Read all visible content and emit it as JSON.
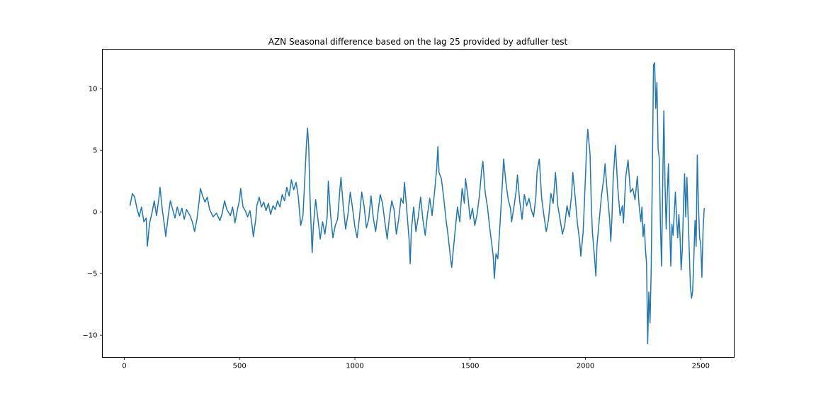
{
  "chart_data": {
    "type": "line",
    "title": "AZN Seasonal difference based on the lag 25 provided by adfuller test",
    "xlabel": "",
    "ylabel": "",
    "xlim": [
      -95,
      2645
    ],
    "ylim": [
      -11.8,
      13.2
    ],
    "xticks": [
      0,
      500,
      1000,
      1500,
      2000,
      2500
    ],
    "yticks": [
      -10,
      -5,
      0,
      5,
      10
    ],
    "grid": false,
    "line_color": "#1f77b4",
    "series": [
      {
        "points": [
          [
            25,
            0.5
          ],
          [
            35,
            1.5
          ],
          [
            45,
            1.2
          ],
          [
            55,
            0.3
          ],
          [
            65,
            -0.4
          ],
          [
            75,
            0.4
          ],
          [
            85,
            -0.8
          ],
          [
            95,
            -0.5
          ],
          [
            100,
            -2.8
          ],
          [
            110,
            -0.9
          ],
          [
            120,
            -0.1
          ],
          [
            130,
            0.9
          ],
          [
            140,
            -0.3
          ],
          [
            150,
            1.1
          ],
          [
            155,
            2.0
          ],
          [
            165,
            0.2
          ],
          [
            175,
            -1.2
          ],
          [
            180,
            -2.0
          ],
          [
            190,
            -0.4
          ],
          [
            200,
            0.9
          ],
          [
            210,
            0.2
          ],
          [
            220,
            -0.5
          ],
          [
            230,
            0.4
          ],
          [
            240,
            -0.3
          ],
          [
            250,
            0.3
          ],
          [
            260,
            -0.6
          ],
          [
            270,
            0.2
          ],
          [
            285,
            -0.3
          ],
          [
            295,
            -0.8
          ],
          [
            305,
            -1.6
          ],
          [
            315,
            -0.6
          ],
          [
            325,
            0.9
          ],
          [
            330,
            1.9
          ],
          [
            340,
            1.3
          ],
          [
            350,
            0.8
          ],
          [
            360,
            1.2
          ],
          [
            370,
            0.2
          ],
          [
            385,
            -0.4
          ],
          [
            400,
            -0.1
          ],
          [
            415,
            -0.7
          ],
          [
            425,
            -0.1
          ],
          [
            435,
            0.9
          ],
          [
            445,
            0.2
          ],
          [
            460,
            -0.3
          ],
          [
            470,
            0.4
          ],
          [
            480,
            -0.9
          ],
          [
            490,
            0.1
          ],
          [
            500,
            1.0
          ],
          [
            505,
            1.9
          ],
          [
            515,
            0.4
          ],
          [
            525,
            0.1
          ],
          [
            535,
            -0.4
          ],
          [
            545,
            0.1
          ],
          [
            555,
            -1.2
          ],
          [
            560,
            -2.0
          ],
          [
            570,
            -0.6
          ],
          [
            575,
            0.5
          ],
          [
            585,
            1.2
          ],
          [
            595,
            0.4
          ],
          [
            605,
            0.8
          ],
          [
            615,
            0.1
          ],
          [
            625,
            0.7
          ],
          [
            635,
            -0.2
          ],
          [
            645,
            0.5
          ],
          [
            655,
            0.2
          ],
          [
            665,
            0.9
          ],
          [
            675,
            0.4
          ],
          [
            685,
            1.4
          ],
          [
            695,
            0.9
          ],
          [
            705,
            2.0
          ],
          [
            715,
            1.3
          ],
          [
            725,
            2.6
          ],
          [
            735,
            1.8
          ],
          [
            745,
            2.4
          ],
          [
            755,
            1.2
          ],
          [
            765,
            -1.1
          ],
          [
            775,
            -0.3
          ],
          [
            785,
            3.5
          ],
          [
            790,
            5.5
          ],
          [
            795,
            6.8
          ],
          [
            800,
            5.2
          ],
          [
            805,
            1.5
          ],
          [
            810,
            -1.0
          ],
          [
            815,
            -3.3
          ],
          [
            820,
            -1.2
          ],
          [
            830,
            1.0
          ],
          [
            840,
            -0.6
          ],
          [
            850,
            -2.2
          ],
          [
            860,
            -0.8
          ],
          [
            870,
            -1.8
          ],
          [
            880,
            -0.4
          ],
          [
            885,
            2.5
          ],
          [
            895,
            -0.3
          ],
          [
            905,
            -2.1
          ],
          [
            915,
            -1.1
          ],
          [
            925,
            -0.6
          ],
          [
            935,
            1.8
          ],
          [
            940,
            2.8
          ],
          [
            950,
            0.4
          ],
          [
            960,
            -1.4
          ],
          [
            970,
            -0.2
          ],
          [
            980,
            1.6
          ],
          [
            990,
            0.3
          ],
          [
            1000,
            -1.2
          ],
          [
            1010,
            -2.1
          ],
          [
            1020,
            -0.4
          ],
          [
            1030,
            1.6
          ],
          [
            1040,
            0.5
          ],
          [
            1050,
            -1.3
          ],
          [
            1060,
            -0.6
          ],
          [
            1070,
            1.3
          ],
          [
            1080,
            -0.5
          ],
          [
            1090,
            -1.6
          ],
          [
            1100,
            -0.1
          ],
          [
            1110,
            1.4
          ],
          [
            1120,
            0.7
          ],
          [
            1130,
            -0.8
          ],
          [
            1140,
            -2.2
          ],
          [
            1150,
            -0.4
          ],
          [
            1160,
            0.9
          ],
          [
            1170,
            0.2
          ],
          [
            1180,
            -1.8
          ],
          [
            1190,
            -0.6
          ],
          [
            1200,
            1.1
          ],
          [
            1210,
            0.7
          ],
          [
            1215,
            2.4
          ],
          [
            1225,
            0.2
          ],
          [
            1235,
            -2.2
          ],
          [
            1240,
            -4.2
          ],
          [
            1245,
            -1.5
          ],
          [
            1255,
            0.4
          ],
          [
            1265,
            -1.6
          ],
          [
            1275,
            -0.4
          ],
          [
            1285,
            1.2
          ],
          [
            1295,
            -0.6
          ],
          [
            1305,
            -1.9
          ],
          [
            1315,
            -0.2
          ],
          [
            1325,
            1.1
          ],
          [
            1335,
            -0.3
          ],
          [
            1345,
            1.5
          ],
          [
            1355,
            3.5
          ],
          [
            1360,
            5.3
          ],
          [
            1365,
            3.2
          ],
          [
            1375,
            2.7
          ],
          [
            1385,
            1.2
          ],
          [
            1395,
            -0.6
          ],
          [
            1405,
            -2.0
          ],
          [
            1415,
            -3.8
          ],
          [
            1420,
            -4.5
          ],
          [
            1425,
            -3.5
          ],
          [
            1435,
            -1.5
          ],
          [
            1445,
            0.4
          ],
          [
            1455,
            -0.8
          ],
          [
            1465,
            1.9
          ],
          [
            1475,
            0.7
          ],
          [
            1480,
            2.7
          ],
          [
            1490,
            1.3
          ],
          [
            1500,
            -0.6
          ],
          [
            1510,
            0.3
          ],
          [
            1520,
            -1.1
          ],
          [
            1530,
            -0.2
          ],
          [
            1540,
            1.3
          ],
          [
            1550,
            3.4
          ],
          [
            1555,
            4.1
          ],
          [
            1565,
            1.6
          ],
          [
            1575,
            0.4
          ],
          [
            1585,
            -1.3
          ],
          [
            1595,
            -2.8
          ],
          [
            1600,
            -3.6
          ],
          [
            1605,
            -5.4
          ],
          [
            1612,
            -3.4
          ],
          [
            1620,
            -3.8
          ],
          [
            1630,
            -0.8
          ],
          [
            1640,
            2.4
          ],
          [
            1645,
            4.3
          ],
          [
            1655,
            2.4
          ],
          [
            1665,
            1.0
          ],
          [
            1675,
            0.3
          ],
          [
            1680,
            -0.8
          ],
          [
            1690,
            0.4
          ],
          [
            1700,
            1.8
          ],
          [
            1705,
            3.0
          ],
          [
            1715,
            0.9
          ],
          [
            1725,
            -0.6
          ],
          [
            1735,
            1.4
          ],
          [
            1745,
            0.5
          ],
          [
            1755,
            1.1
          ],
          [
            1765,
            0.2
          ],
          [
            1775,
            -0.4
          ],
          [
            1785,
            1.2
          ],
          [
            1790,
            3.3
          ],
          [
            1800,
            4.3
          ],
          [
            1810,
            1.1
          ],
          [
            1820,
            -0.3
          ],
          [
            1830,
            -1.6
          ],
          [
            1840,
            -0.6
          ],
          [
            1850,
            1.5
          ],
          [
            1860,
            0.7
          ],
          [
            1870,
            3.2
          ],
          [
            1880,
            0.5
          ],
          [
            1890,
            -0.6
          ],
          [
            1900,
            -1.8
          ],
          [
            1910,
            -1.1
          ],
          [
            1920,
            0.5
          ],
          [
            1930,
            -0.4
          ],
          [
            1940,
            1.4
          ],
          [
            1945,
            3.2
          ],
          [
            1955,
            1.3
          ],
          [
            1965,
            -0.9
          ],
          [
            1975,
            -2.4
          ],
          [
            1980,
            -3.6
          ],
          [
            1990,
            -1.6
          ],
          [
            2000,
            2.8
          ],
          [
            2005,
            5.2
          ],
          [
            2010,
            6.7
          ],
          [
            2020,
            4.7
          ],
          [
            2025,
            0.8
          ],
          [
            2030,
            -1.6
          ],
          [
            2040,
            -3.8
          ],
          [
            2045,
            -5.2
          ],
          [
            2050,
            -2.7
          ],
          [
            2060,
            -0.6
          ],
          [
            2070,
            1.4
          ],
          [
            2080,
            2.8
          ],
          [
            2085,
            3.9
          ],
          [
            2095,
            1.5
          ],
          [
            2105,
            -0.6
          ],
          [
            2110,
            -2.4
          ],
          [
            2115,
            -0.4
          ],
          [
            2120,
            2.6
          ],
          [
            2130,
            5.4
          ],
          [
            2140,
            2.0
          ],
          [
            2150,
            -0.3
          ],
          [
            2160,
            0.5
          ],
          [
            2165,
            -0.9
          ],
          [
            2175,
            2.9
          ],
          [
            2185,
            4.2
          ],
          [
            2195,
            1.6
          ],
          [
            2205,
            1.9
          ],
          [
            2215,
            1.0
          ],
          [
            2225,
            2.9
          ],
          [
            2232,
            0.7
          ],
          [
            2240,
            -0.8
          ],
          [
            2245,
            0.4
          ],
          [
            2250,
            -2.0
          ],
          [
            2255,
            -1.0
          ],
          [
            2260,
            -3.0
          ],
          [
            2265,
            -4.2
          ],
          [
            2270,
            -10.7
          ],
          [
            2275,
            -6.5
          ],
          [
            2280,
            -9.0
          ],
          [
            2285,
            -4.8
          ],
          [
            2290,
            2.8
          ],
          [
            2295,
            11.9
          ],
          [
            2300,
            12.1
          ],
          [
            2305,
            8.4
          ],
          [
            2310,
            10.5
          ],
          [
            2315,
            5.1
          ],
          [
            2320,
            4.4
          ],
          [
            2325,
            -0.9
          ],
          [
            2330,
            -4.4
          ],
          [
            2335,
            2.4
          ],
          [
            2340,
            8.2
          ],
          [
            2345,
            2.4
          ],
          [
            2350,
            -1.4
          ],
          [
            2355,
            1.6
          ],
          [
            2360,
            3.9
          ],
          [
            2365,
            -0.7
          ],
          [
            2370,
            -4.4
          ],
          [
            2375,
            -1.0
          ],
          [
            2380,
            -1.9
          ],
          [
            2390,
            1.6
          ],
          [
            2395,
            -0.4
          ],
          [
            2400,
            -2.1
          ],
          [
            2405,
            -0.2
          ],
          [
            2410,
            -1.9
          ],
          [
            2415,
            -4.7
          ],
          [
            2420,
            -3.0
          ],
          [
            2425,
            0.4
          ],
          [
            2430,
            3.1
          ],
          [
            2435,
            -0.4
          ],
          [
            2440,
            2.8
          ],
          [
            2445,
            -0.3
          ],
          [
            2450,
            -3.0
          ],
          [
            2455,
            -6.0
          ],
          [
            2460,
            -7.0
          ],
          [
            2465,
            -6.4
          ],
          [
            2470,
            -3.8
          ],
          [
            2475,
            -0.7
          ],
          [
            2480,
            -2.8
          ],
          [
            2485,
            4.6
          ],
          [
            2490,
            0.6
          ],
          [
            2495,
            -2.1
          ],
          [
            2500,
            -2.6
          ],
          [
            2505,
            -5.3
          ],
          [
            2510,
            -1.4
          ],
          [
            2515,
            0.3
          ]
        ]
      }
    ]
  }
}
